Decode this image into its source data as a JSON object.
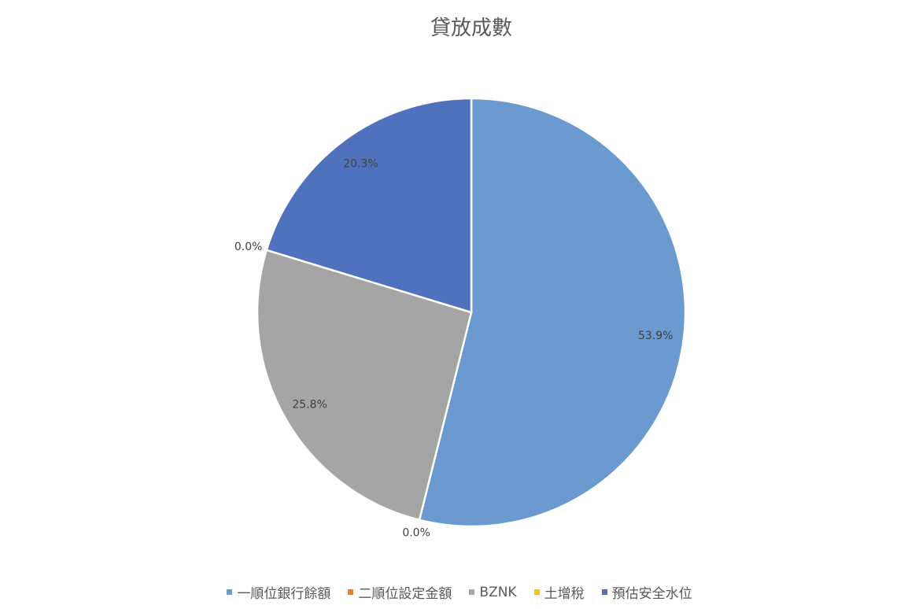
{
  "chart_data": {
    "type": "pie",
    "title": "貸放成數",
    "categories": [
      "一順位銀行餘額",
      "二順位設定金額",
      "BZNK",
      "土增稅",
      "預估安全水位"
    ],
    "values": [
      53.9,
      0.0,
      25.8,
      0.0,
      20.3
    ],
    "labels": [
      "53.9%",
      "0.0%",
      "25.8%",
      "0.0%",
      "20.3%"
    ],
    "colors": [
      "#6A9AD0",
      "#ED7D31",
      "#A5A5A5",
      "#FFC000",
      "#4F71BE"
    ],
    "legend_position": "bottom",
    "start_angle": "top, clockwise"
  }
}
